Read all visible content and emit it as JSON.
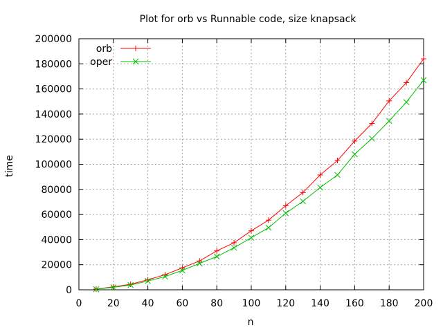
{
  "chart_data": {
    "type": "line",
    "title": "Plot for orb vs Runnable code, size knapsack",
    "xlabel": "n",
    "ylabel": "time",
    "xlim": [
      0,
      200
    ],
    "ylim": [
      0,
      200000
    ],
    "xticks": [
      0,
      20,
      40,
      60,
      80,
      100,
      120,
      140,
      160,
      180,
      200
    ],
    "yticks": [
      0,
      20000,
      40000,
      60000,
      80000,
      100000,
      120000,
      140000,
      160000,
      180000,
      200000
    ],
    "grid": true,
    "legend_position": "top-left",
    "x": [
      10,
      20,
      30,
      40,
      50,
      60,
      70,
      80,
      90,
      100,
      110,
      120,
      130,
      140,
      150,
      160,
      170,
      180,
      190,
      200
    ],
    "series": [
      {
        "name": "orb",
        "color": "#ff0000",
        "marker": "plus",
        "values": [
          600,
          2300,
          4400,
          8000,
          12000,
          17500,
          23000,
          31000,
          37500,
          47000,
          55500,
          67000,
          77500,
          91500,
          103000,
          118500,
          132500,
          150500,
          165000,
          184000
        ]
      },
      {
        "name": "oper",
        "color": "#00c000",
        "marker": "cross",
        "values": [
          500,
          2000,
          3800,
          7000,
          10500,
          15500,
          21000,
          26500,
          33500,
          41500,
          49500,
          61000,
          70500,
          81500,
          91500,
          108000,
          120500,
          134500,
          149500,
          167000
        ]
      }
    ]
  }
}
